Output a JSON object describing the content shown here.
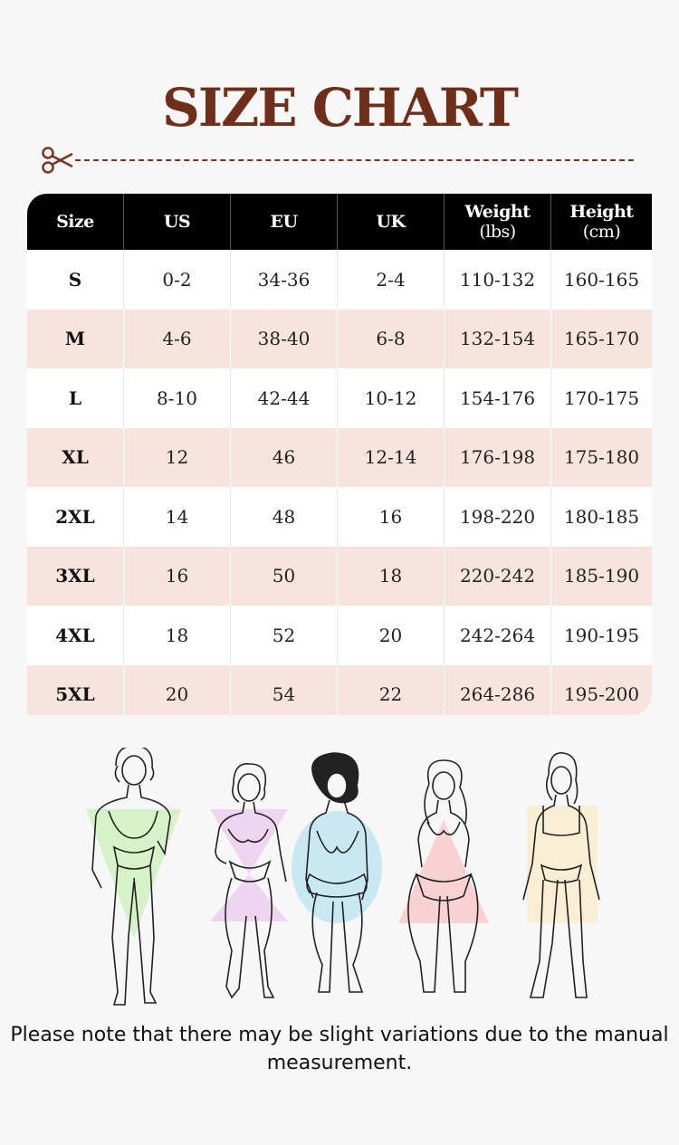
{
  "title": "SIZE CHART",
  "colors": {
    "title": "#6e2e1a",
    "header_bg": "#000000",
    "row_pink": "#f7e4dc",
    "row_white": "#ffffff"
  },
  "icons": {
    "cut": "scissors-icon"
  },
  "table": {
    "headers": [
      {
        "label": "Size",
        "sub": ""
      },
      {
        "label": "US",
        "sub": ""
      },
      {
        "label": "EU",
        "sub": ""
      },
      {
        "label": "UK",
        "sub": ""
      },
      {
        "label": "Weight",
        "sub": "(lbs)"
      },
      {
        "label": "Height",
        "sub": "(cm)"
      }
    ],
    "rows": [
      [
        "S",
        "0-2",
        "34-36",
        "2-4",
        "110-132",
        "160-165"
      ],
      [
        "M",
        "4-6",
        "38-40",
        "6-8",
        "132-154",
        "165-170"
      ],
      [
        "L",
        "8-10",
        "42-44",
        "10-12",
        "154-176",
        "170-175"
      ],
      [
        "XL",
        "12",
        "46",
        "12-14",
        "176-198",
        "175-180"
      ],
      [
        "2XL",
        "14",
        "48",
        "16",
        "198-220",
        "180-185"
      ],
      [
        "3XL",
        "16",
        "50",
        "18",
        "220-242",
        "185-190"
      ],
      [
        "4XL",
        "18",
        "52",
        "20",
        "242-264",
        "190-195"
      ],
      [
        "5XL",
        "20",
        "54",
        "22",
        "264-286",
        "195-200"
      ]
    ]
  },
  "body_shapes": [
    {
      "shape": "inverted-triangle",
      "color": "#d6f2c8"
    },
    {
      "shape": "hourglass",
      "color": "#efd6f0"
    },
    {
      "shape": "apple",
      "color": "#c8e8f2"
    },
    {
      "shape": "pear",
      "color": "#f8d2d2"
    },
    {
      "shape": "rectangle",
      "color": "#faefd4"
    }
  ],
  "note": "Please note that there may be slight variations due to the manual measurement."
}
